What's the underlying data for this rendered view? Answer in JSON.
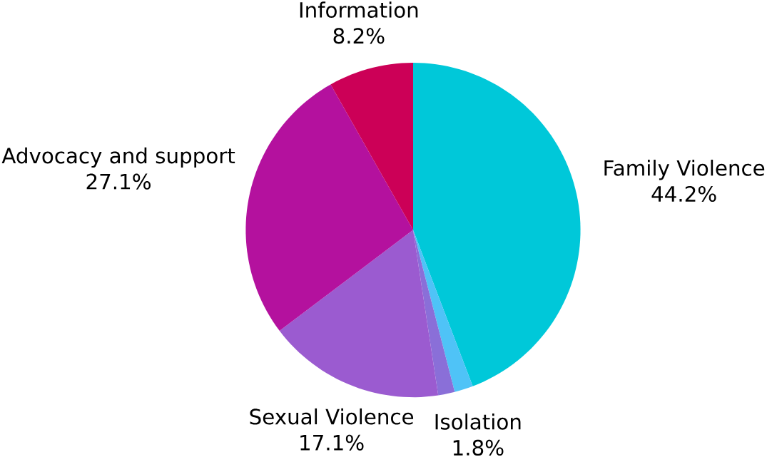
{
  "chart_data": {
    "type": "pie",
    "categories": [
      "Family Violence",
      "Isolation",
      null,
      "Sexual Violence",
      "Advocacy and support",
      "Information"
    ],
    "values": [
      44.2,
      1.8,
      1.6,
      17.1,
      27.1,
      8.2
    ],
    "value_labels": [
      "44.2%",
      "1.8%",
      null,
      "17.1%",
      "27.1%",
      "8.2%"
    ],
    "colors": [
      "#00c8d9",
      "#4fc3f7",
      "#8a6fd8",
      "#9b5bd0",
      "#b4119e",
      "#cc0057"
    ]
  }
}
